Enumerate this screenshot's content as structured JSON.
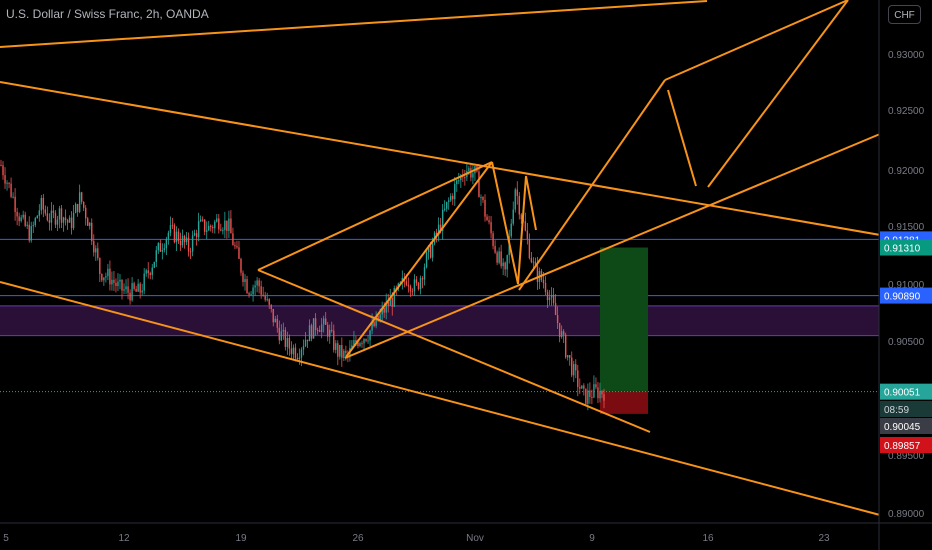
{
  "header": {
    "title": "U.S. Dollar / Swiss Franc, 2h, OANDA",
    "currency_button": "CHF"
  },
  "chart_data": {
    "type": "candlestick",
    "symbol": "USD/CHF",
    "interval": "2h",
    "source": "OANDA",
    "ylim": [
      0.8955,
      0.9345
    ],
    "y_ticks": [
      "0.93000",
      "0.92500",
      "0.92000",
      "0.91500",
      "0.91000",
      "0.90500",
      "0.89500",
      "0.89000"
    ],
    "x_ticks": [
      "5",
      "12",
      "19",
      "26",
      "Nov",
      "9",
      "16",
      "23"
    ],
    "price_path": [
      [
        0,
        0.9203
      ],
      [
        1,
        0.918
      ],
      [
        2,
        0.9155
      ],
      [
        3,
        0.9142
      ],
      [
        4,
        0.9168
      ],
      [
        5,
        0.9155
      ],
      [
        6,
        0.9162
      ],
      [
        7,
        0.915
      ],
      [
        8,
        0.9175
      ],
      [
        9,
        0.915
      ],
      [
        10,
        0.911
      ],
      [
        11,
        0.9105
      ],
      [
        12,
        0.9095
      ],
      [
        13,
        0.9092
      ],
      [
        14,
        0.9092
      ],
      [
        15,
        0.9112
      ],
      [
        16,
        0.913
      ],
      [
        17,
        0.9145
      ],
      [
        18,
        0.914
      ],
      [
        19,
        0.913
      ],
      [
        20,
        0.915
      ],
      [
        21,
        0.9148
      ],
      [
        22,
        0.9155
      ],
      [
        23,
        0.915
      ],
      [
        24,
        0.912
      ],
      [
        25,
        0.9095
      ],
      [
        26,
        0.91
      ],
      [
        27,
        0.908
      ],
      [
        28,
        0.906
      ],
      [
        29,
        0.9045
      ],
      [
        30,
        0.904
      ],
      [
        31,
        0.9055
      ],
      [
        32,
        0.9065
      ],
      [
        33,
        0.906
      ],
      [
        34,
        0.904
      ],
      [
        35,
        0.9035
      ],
      [
        36,
        0.905
      ],
      [
        37,
        0.9055
      ],
      [
        38,
        0.9065
      ],
      [
        39,
        0.908
      ],
      [
        40,
        0.909
      ],
      [
        41,
        0.9105
      ],
      [
        42,
        0.9095
      ],
      [
        43,
        0.912
      ],
      [
        44,
        0.914
      ],
      [
        45,
        0.9165
      ],
      [
        46,
        0.9185
      ],
      [
        47,
        0.92
      ],
      [
        48,
        0.9195
      ],
      [
        49,
        0.916
      ],
      [
        50,
        0.913
      ],
      [
        51,
        0.9105
      ],
      [
        52,
        0.9185
      ],
      [
        53,
        0.9145
      ],
      [
        54,
        0.911
      ],
      [
        55,
        0.91
      ],
      [
        56,
        0.9075
      ],
      [
        57,
        0.9045
      ],
      [
        58,
        0.902
      ],
      [
        59,
        0.9
      ],
      [
        60,
        0.9005
      ],
      [
        61,
        0.9005
      ]
    ],
    "horizontal_lines": [
      {
        "price": 0.91381,
        "label": "0.91381",
        "color": "#2962ff"
      },
      {
        "price": 0.9089,
        "label": "0.90890",
        "color": "#2962ff"
      }
    ],
    "zone": {
      "from": 0.9054,
      "to": 0.908,
      "color": "#673ab7"
    },
    "position": {
      "entry": 0.90051,
      "target": 0.9131,
      "stop": 0.89857,
      "target_label": "0.91310",
      "entry_label": "0.90051",
      "stop_label": "0.89857"
    },
    "last_price": {
      "value": "0.90045",
      "countdown": "08:59"
    },
    "drawing_color": "#f7931a",
    "line_color_up": "#26a69a",
    "line_color_down": "#ef5350"
  }
}
